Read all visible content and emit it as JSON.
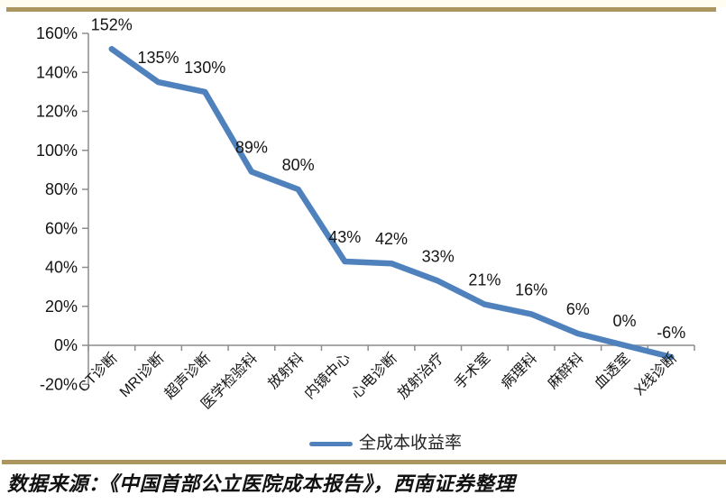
{
  "chart_data": {
    "type": "line",
    "title": "",
    "legend": "全成本收益率",
    "legend_position": "bottom",
    "grid": false,
    "categories": [
      "CT诊断",
      "MRI诊断",
      "超声诊断",
      "医学检验科",
      "放射科",
      "内镜中心",
      "心电诊断",
      "放射治疗",
      "手术室",
      "病理科",
      "麻醉科",
      "血透室",
      "X线诊断"
    ],
    "series": [
      {
        "name": "全成本收益率",
        "values": [
          152,
          135,
          130,
          89,
          80,
          43,
          42,
          33,
          21,
          16,
          6,
          0,
          -6
        ]
      }
    ],
    "data_labels": [
      "152%",
      "135%",
      "130%",
      "89%",
      "80%",
      "43%",
      "42%",
      "33%",
      "21%",
      "16%",
      "6%",
      "0%",
      "-6%"
    ],
    "y_axis": {
      "min": -20,
      "max": 160,
      "step": 20,
      "ticks": [
        {
          "value": 160,
          "label": "160%"
        },
        {
          "value": 140,
          "label": "140%"
        },
        {
          "value": 120,
          "label": "120%"
        },
        {
          "value": 100,
          "label": "100%"
        },
        {
          "value": 80,
          "label": "80%"
        },
        {
          "value": 60,
          "label": "60%"
        },
        {
          "value": 40,
          "label": "40%"
        },
        {
          "value": 20,
          "label": "20%"
        },
        {
          "value": 0,
          "label": "0%"
        },
        {
          "value": -20,
          "label": "-20%"
        }
      ]
    },
    "colors": {
      "line": "#4F81BD",
      "axis": "#8C8C8C",
      "label_text": "#141414",
      "accent_border": "#AB9660"
    }
  },
  "footer": {
    "source_text": "数据来源：《中国首部公立医院成本报告》，西南证券整理"
  }
}
